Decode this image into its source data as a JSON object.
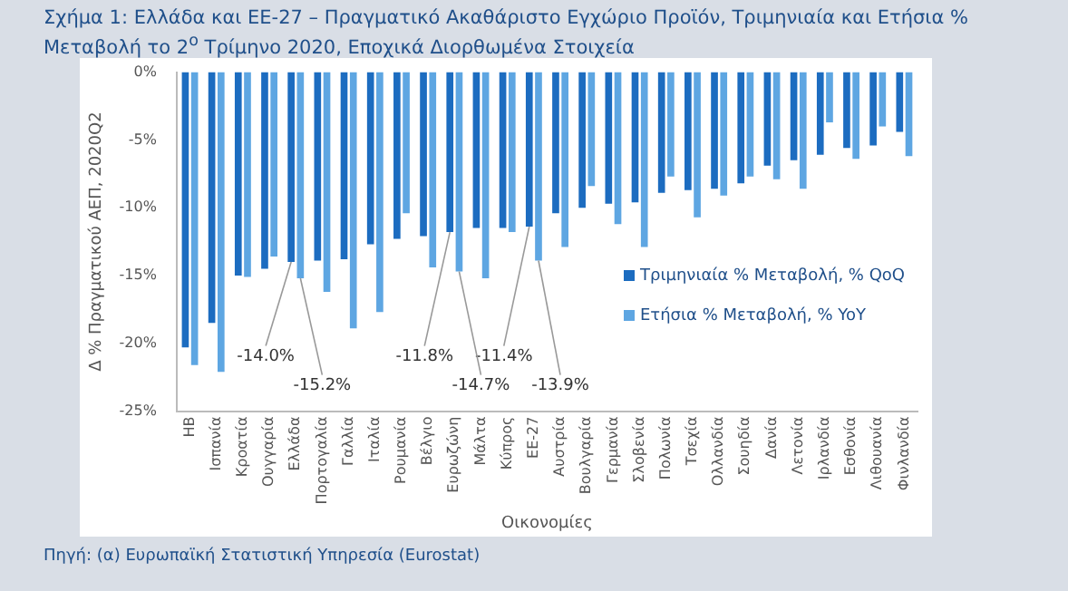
{
  "chart_data": {
    "type": "bar",
    "title": "Σχήμα 1: Ελλάδα και ΕΕ-27 – Πραγματικό Ακαθάριστο Εγχώριο Προϊόν, Τριμηνιαία και Ετήσια % Μεταβολή το 2$^{ο}$ Τρίμηνο 2020, Εποχικά Διορθωμένα Στοιχεία",
    "xlabel": "Οικονομίες",
    "ylabel": "Δ % Πραγματικού ΑΕΠ, 2020Q2",
    "annotations": [
      "Πηγή: (α) Ευρωπαϊκή Στατιστική Υπηρεσία (Eurostat)"
    ],
    "categories": [
      "ΗΒ",
      "Ισπανία",
      "Κροατία",
      "Ουγγαρία",
      "Ελλάδα",
      "Πορτογαλία",
      "Γαλλία",
      "Ιταλία",
      "Ρουμανία",
      "Βέλγιο",
      "Ευρωζώνη",
      "Μάλτα",
      "Κύπρος",
      "ΕΕ-27",
      "Αυστρία",
      "Βουλγαρία",
      "Γερμανία",
      "Σλοβενία",
      "Πολωνία",
      "Τσεχία",
      "Ολλανδία",
      "Σουηδία",
      "Δανία",
      "Λετονία",
      "Ιρλανδία",
      "Εσθονία",
      "Λιθουανία",
      "Φινλανδία"
    ],
    "series": [
      {
        "name": "Τριμηνιαία % Μεταβολή, % QoQ",
        "color": "#1c6cc0",
        "values": [
          -20.3,
          -18.5,
          -15.0,
          -14.5,
          -14.0,
          -13.9,
          -13.8,
          -12.7,
          -12.3,
          -12.1,
          -11.8,
          -11.5,
          -11.5,
          -11.4,
          -10.4,
          -10.0,
          -9.7,
          -9.6,
          -8.9,
          -8.7,
          -8.6,
          -8.2,
          -6.9,
          -6.5,
          -6.1,
          -5.6,
          -5.4,
          -4.4
        ],
        "value_labels": [
          null,
          null,
          null,
          null,
          "-14.0%",
          null,
          null,
          null,
          null,
          null,
          "-11.8%",
          null,
          null,
          "-11.4%",
          null,
          null,
          null,
          null,
          null,
          null,
          null,
          null,
          null,
          null,
          null,
          null,
          null,
          null
        ]
      },
      {
        "name": "Ετήσια % Μεταβολή, % YoY",
        "color": "#5ea6e2",
        "values": [
          -21.6,
          -22.1,
          -15.1,
          -13.6,
          -15.2,
          -16.2,
          -18.9,
          -17.7,
          -10.4,
          -14.4,
          -14.7,
          -15.2,
          -11.8,
          -13.9,
          -12.9,
          -8.4,
          -11.2,
          -12.9,
          -7.7,
          -10.7,
          -9.1,
          -7.7,
          -7.9,
          -8.6,
          -3.7,
          -6.4,
          -4.0,
          -6.2
        ],
        "value_labels": [
          null,
          null,
          null,
          null,
          "-15.2%",
          null,
          null,
          null,
          null,
          null,
          "-14.7%",
          null,
          null,
          "-13.9%",
          null,
          null,
          null,
          null,
          null,
          null,
          null,
          null,
          null,
          null,
          null,
          null,
          null,
          null
        ]
      }
    ],
    "ylim": [
      -25,
      0
    ],
    "yticks": [
      {
        "value": -25,
        "label": "-25%"
      },
      {
        "value": -20,
        "label": "-20%"
      },
      {
        "value": -15,
        "label": "-15%"
      },
      {
        "value": -10,
        "label": "-10%"
      },
      {
        "value": -5,
        "label": "-5%"
      },
      {
        "value": 0,
        "label": "0%"
      }
    ],
    "grid": false,
    "legend": "right"
  }
}
